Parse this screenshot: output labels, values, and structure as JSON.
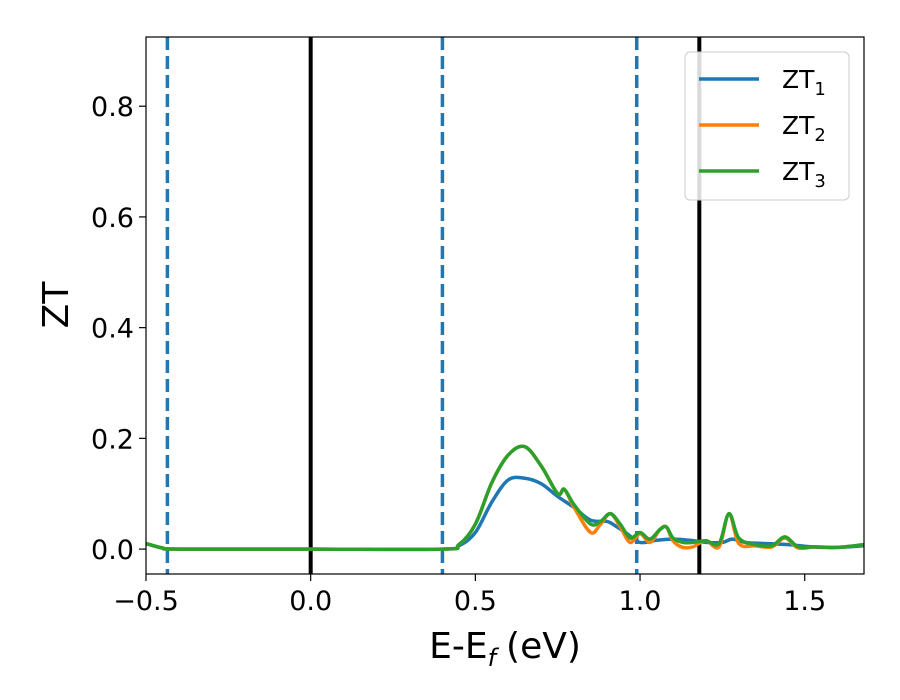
{
  "chart_data": {
    "type": "line",
    "xlabel": "E-E",
    "xlabel_sub": "f",
    "xlabel_unit": "(eV)",
    "ylabel": "ZT",
    "xlim": [
      -0.5,
      1.68
    ],
    "ylim": [
      -0.045,
      0.925
    ],
    "x_ticks": [
      -0.5,
      0.0,
      0.5,
      1.0,
      1.5
    ],
    "x_tick_labels": [
      "−0.5",
      "0.0",
      "0.5",
      "1.0",
      "1.5"
    ],
    "y_ticks": [
      0.0,
      0.2,
      0.4,
      0.6,
      0.8
    ],
    "y_tick_labels": [
      "0.0",
      "0.2",
      "0.4",
      "0.6",
      "0.8"
    ],
    "grid": false,
    "legend_position": "top-right",
    "vlines": [
      {
        "x": -0.435,
        "style": "dashed",
        "color": "#1f77b4"
      },
      {
        "x": 0.0,
        "style": "solid",
        "color": "#000000"
      },
      {
        "x": 0.4,
        "style": "dashed",
        "color": "#1f77b4"
      },
      {
        "x": 0.99,
        "style": "dashed",
        "color": "#1f77b4"
      },
      {
        "x": 1.18,
        "style": "solid",
        "color": "#000000"
      }
    ],
    "series": [
      {
        "name": "ZT",
        "name_sub": "1",
        "color": "#1f77b4",
        "x": [
          -0.5,
          -0.45,
          -0.4,
          0.0,
          0.4,
          0.45,
          0.5,
          0.55,
          0.6,
          0.65,
          0.7,
          0.75,
          0.8,
          0.85,
          0.9,
          0.93,
          0.96,
          1.0,
          1.05,
          1.1,
          1.15,
          1.2,
          1.25,
          1.28,
          1.32,
          1.38,
          1.45,
          1.52,
          1.6,
          1.68
        ],
        "y": [
          0.01,
          0.002,
          0.0,
          0.0,
          0.0,
          0.006,
          0.03,
          0.085,
          0.125,
          0.128,
          0.118,
          0.095,
          0.075,
          0.052,
          0.05,
          0.04,
          0.028,
          0.012,
          0.016,
          0.018,
          0.016,
          0.012,
          0.012,
          0.018,
          0.012,
          0.01,
          0.008,
          0.004,
          0.003,
          0.006
        ]
      },
      {
        "name": "ZT",
        "name_sub": "2",
        "color": "#ff7f0e",
        "x": [
          -0.5,
          -0.45,
          -0.4,
          0.0,
          0.4,
          0.45,
          0.5,
          0.55,
          0.6,
          0.65,
          0.7,
          0.75,
          0.77,
          0.8,
          0.85,
          0.88,
          0.91,
          0.94,
          0.97,
          1.0,
          1.03,
          1.06,
          1.08,
          1.1,
          1.13,
          1.16,
          1.2,
          1.24,
          1.27,
          1.3,
          1.35,
          1.4,
          1.44,
          1.48,
          1.53,
          1.6,
          1.68
        ],
        "y": [
          0.01,
          0.002,
          0.0,
          0.0,
          0.0,
          0.008,
          0.045,
          0.12,
          0.17,
          0.185,
          0.15,
          0.1,
          0.108,
          0.075,
          0.03,
          0.045,
          0.064,
          0.04,
          0.012,
          0.028,
          0.012,
          0.035,
          0.04,
          0.015,
          0.003,
          0.004,
          0.015,
          0.004,
          0.064,
          0.01,
          0.006,
          0.004,
          0.02,
          0.002,
          0.004,
          0.003,
          0.008
        ]
      },
      {
        "name": "ZT",
        "name_sub": "3",
        "color": "#2ca02c",
        "x": [
          -0.5,
          -0.45,
          -0.4,
          0.0,
          0.4,
          0.45,
          0.5,
          0.55,
          0.6,
          0.65,
          0.7,
          0.75,
          0.77,
          0.8,
          0.85,
          0.88,
          0.91,
          0.94,
          0.97,
          1.0,
          1.03,
          1.06,
          1.08,
          1.1,
          1.13,
          1.16,
          1.2,
          1.24,
          1.27,
          1.3,
          1.35,
          1.4,
          1.44,
          1.48,
          1.53,
          1.6,
          1.68
        ],
        "y": [
          0.01,
          0.002,
          0.0,
          0.0,
          0.0,
          0.008,
          0.045,
          0.12,
          0.17,
          0.185,
          0.15,
          0.1,
          0.108,
          0.08,
          0.045,
          0.05,
          0.064,
          0.045,
          0.02,
          0.03,
          0.018,
          0.035,
          0.04,
          0.02,
          0.012,
          0.012,
          0.015,
          0.01,
          0.064,
          0.02,
          0.008,
          0.006,
          0.022,
          0.004,
          0.004,
          0.003,
          0.008
        ]
      }
    ]
  }
}
